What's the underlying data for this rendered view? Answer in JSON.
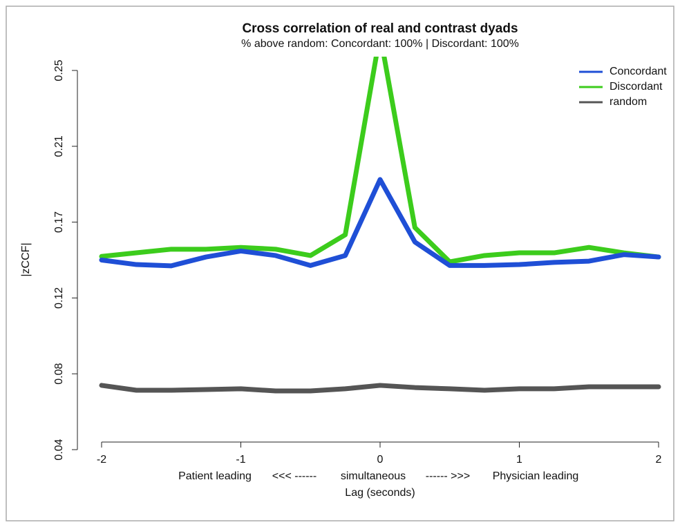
{
  "chart_data": {
    "type": "line",
    "title": "Cross correlation of real and contrast dyads",
    "subtitle": "% above random: Concordant: 100% | Discordant: 100%",
    "xlabel": "Lag (seconds)",
    "x_sublabels": [
      "Patient leading",
      "<<< ------",
      "simultaneous",
      "------ >>>",
      "Physician leading"
    ],
    "ylabel": "|zCCF|",
    "x": [
      -2,
      -1.75,
      -1.5,
      -1.25,
      -1,
      -0.75,
      -0.5,
      -0.25,
      0,
      0.25,
      0.5,
      0.75,
      1,
      1.25,
      1.5,
      1.75,
      2
    ],
    "series": [
      {
        "name": "Concordant",
        "color": "#1f4fd6",
        "values": [
          0.145,
          0.1425,
          0.1418,
          0.1467,
          0.15,
          0.1475,
          0.142,
          0.1475,
          0.1896,
          0.155,
          0.142,
          0.142,
          0.1425,
          0.1437,
          0.1444,
          0.148,
          0.1467
        ]
      },
      {
        "name": "Discordant",
        "color": "#3ccc1c",
        "values": [
          0.147,
          0.149,
          0.151,
          0.151,
          0.152,
          0.151,
          0.1475,
          0.159,
          0.27,
          0.163,
          0.144,
          0.1475,
          0.149,
          0.149,
          0.152,
          0.149,
          0.1467
        ]
      },
      {
        "name": "random",
        "color": "#555555",
        "values": [
          0.0756,
          0.0729,
          0.0729,
          0.0733,
          0.0737,
          0.0725,
          0.0725,
          0.0737,
          0.0756,
          0.0744,
          0.0737,
          0.0729,
          0.0737,
          0.0737,
          0.0748,
          0.0748,
          0.0748
        ]
      }
    ],
    "xlim": [
      -2,
      2
    ],
    "xticks": [
      -2,
      -1,
      0,
      1,
      2
    ],
    "ylim": [
      0.04,
      0.25
    ],
    "yticks": [
      {
        "value": 0.04,
        "label": "0.04"
      },
      {
        "value": 0.082,
        "label": "0.08"
      },
      {
        "value": 0.124,
        "label": "0.12"
      },
      {
        "value": 0.166,
        "label": "0.17"
      },
      {
        "value": 0.208,
        "label": "0.21"
      },
      {
        "value": 0.25,
        "label": "0.25"
      }
    ],
    "legend": "topright"
  }
}
